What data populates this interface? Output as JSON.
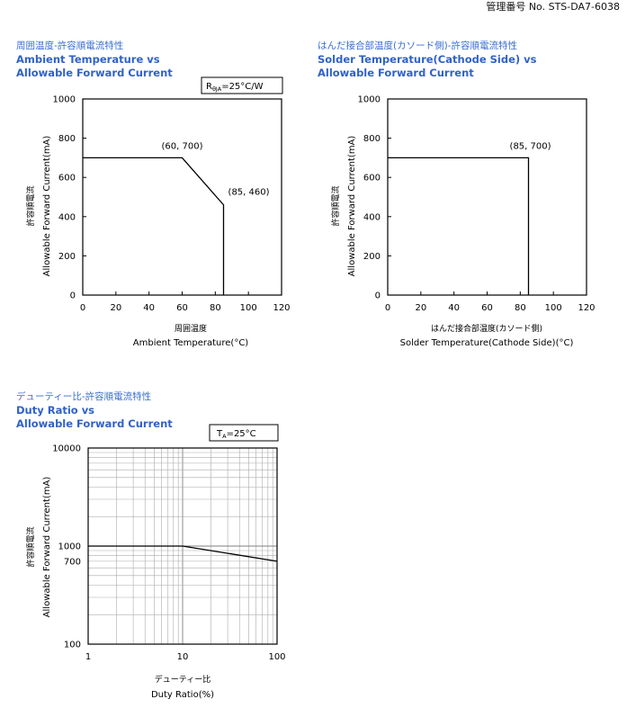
{
  "doc_id": "管理番号 No. STS-DA7-6038",
  "charts_text": [
    {
      "title_jp": "周囲温度-許容順電流特性",
      "title_en_1": "Ambient Temperature vs",
      "title_en_2": "Allowable Forward Current",
      "ylabel_jp": "許容順電流",
      "ylabel_en": "Allowable Forward Current(mA)",
      "xlabel_jp": "周囲温度",
      "xlabel_en": "Ambient Temperature(°C)",
      "condition": "RθJA=25°C/W",
      "condition_main": "R",
      "condition_sub": "θJA",
      "condition_rest": "=25°C/W"
    },
    {
      "title_jp": "はんだ接合部温度(カソード側)-許容順電流特性",
      "title_en_1": "Solder Temperature(Cathode Side) vs",
      "title_en_2": "Allowable Forward Current",
      "ylabel_jp": "許容順電流",
      "ylabel_en": "Allowable Forward Current(mA)",
      "xlabel_jp": "はんだ接合部温度(カソード側)",
      "xlabel_en": "Solder Temperature(Cathode Side)(°C)"
    },
    {
      "title_jp": "デューティー比-許容順電流特性",
      "title_en_1": "Duty Ratio vs",
      "title_en_2": "Allowable Forward Current",
      "ylabel_jp": "許容順電流",
      "ylabel_en": "Allowable Forward Current(mA)",
      "xlabel_jp": "デューティー比",
      "xlabel_en": "Duty Ratio(%)",
      "condition": "TA=25°C",
      "condition_main": "T",
      "condition_sub": "A",
      "condition_rest": "=25°C"
    }
  ],
  "chart_data": [
    {
      "type": "line",
      "xlim": [
        0,
        120
      ],
      "ylim": [
        0,
        1000
      ],
      "xticks": [
        0,
        20,
        40,
        60,
        80,
        100,
        120
      ],
      "yticks": [
        0,
        200,
        400,
        600,
        800,
        1000
      ],
      "grid": false,
      "points": [
        [
          0,
          700
        ],
        [
          60,
          700
        ],
        [
          85,
          460
        ],
        [
          85,
          0
        ]
      ],
      "annotations": [
        {
          "text": "(60, 700)",
          "x": 60,
          "y": 700
        },
        {
          "text": "(85, 460)",
          "x": 85,
          "y": 460
        }
      ]
    },
    {
      "type": "line",
      "xlim": [
        0,
        120
      ],
      "ylim": [
        0,
        1000
      ],
      "xticks": [
        0,
        20,
        40,
        60,
        80,
        100,
        120
      ],
      "yticks": [
        0,
        200,
        400,
        600,
        800,
        1000
      ],
      "grid": false,
      "points": [
        [
          0,
          700
        ],
        [
          85,
          700
        ],
        [
          85,
          0
        ]
      ],
      "annotations": [
        {
          "text": "(85, 700)",
          "x": 85,
          "y": 700
        }
      ]
    },
    {
      "type": "line",
      "xscale": "log",
      "yscale": "log",
      "xlim": [
        1,
        100
      ],
      "ylim": [
        100,
        10000
      ],
      "xticks": [
        1,
        10,
        100
      ],
      "yticks": [
        100,
        700,
        1000,
        10000
      ],
      "grid": true,
      "points": [
        [
          1,
          1000
        ],
        [
          10,
          1000
        ],
        [
          100,
          700
        ]
      ]
    }
  ]
}
